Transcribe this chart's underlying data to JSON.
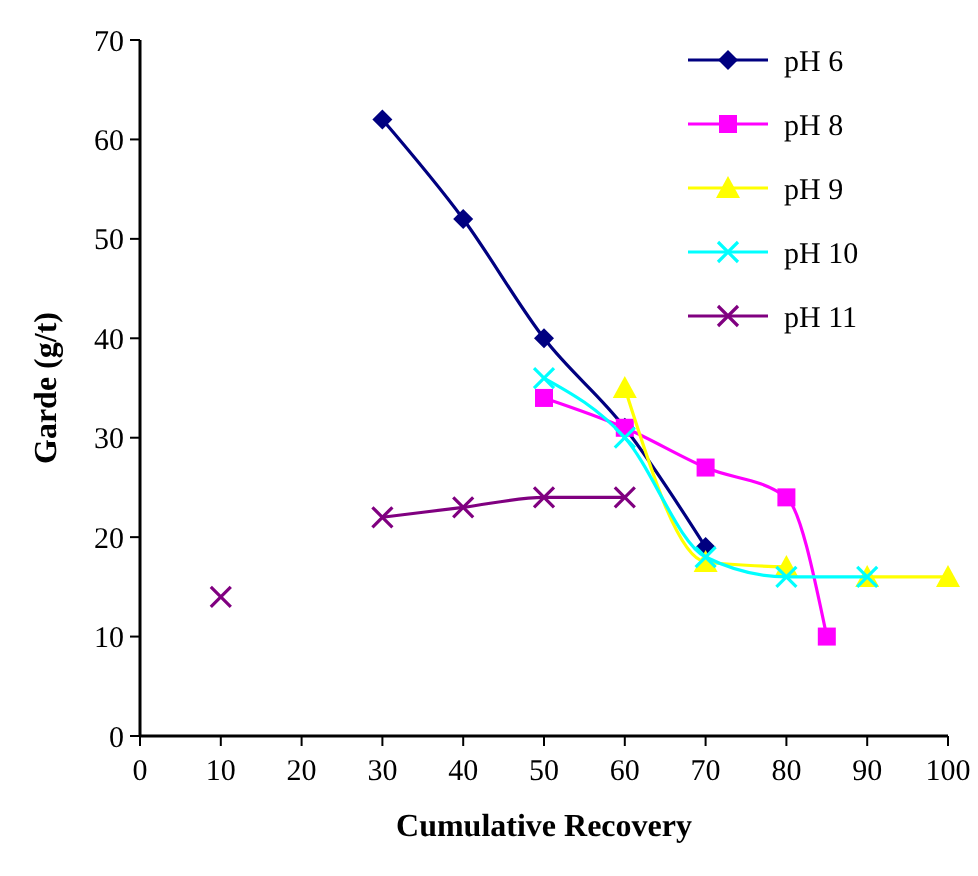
{
  "chart_data": {
    "type": "line",
    "xlabel": "Cumulative Recovery",
    "ylabel": "Garde (g/t)",
    "xlim": [
      0,
      100
    ],
    "ylim": [
      0,
      70
    ],
    "xticks": [
      0,
      10,
      20,
      30,
      40,
      50,
      60,
      70,
      80,
      90,
      100
    ],
    "yticks": [
      0,
      10,
      20,
      30,
      40,
      50,
      60,
      70
    ],
    "legend": "top right",
    "grid": false,
    "series": [
      {
        "name": "pH 6",
        "color": "#000080",
        "marker": "diamond",
        "x": [
          30,
          40,
          50,
          60,
          70
        ],
        "values": [
          62,
          52,
          40,
          31,
          19
        ]
      },
      {
        "name": "pH 8",
        "color": "#ff00ff",
        "marker": "square",
        "x": [
          50,
          60,
          70,
          80,
          85
        ],
        "values": [
          34,
          31,
          27,
          24,
          10
        ]
      },
      {
        "name": "pH 9",
        "color": "#ffff00",
        "marker": "triangle",
        "x": [
          60,
          70,
          80,
          85,
          90,
          100
        ],
        "values": [
          35,
          17.5,
          17,
          null,
          16,
          16
        ]
      },
      {
        "name": "pH 10",
        "color": "#00ffff",
        "marker": "cross",
        "x": [
          50,
          60,
          70,
          80,
          90
        ],
        "values": [
          36,
          30,
          18,
          16,
          16
        ]
      },
      {
        "name": "pH 11",
        "color": "#800080",
        "marker": "cross",
        "x": [
          10,
          20,
          30,
          40,
          50,
          60
        ],
        "values": [
          14,
          null,
          22,
          23,
          24,
          24
        ]
      }
    ]
  }
}
